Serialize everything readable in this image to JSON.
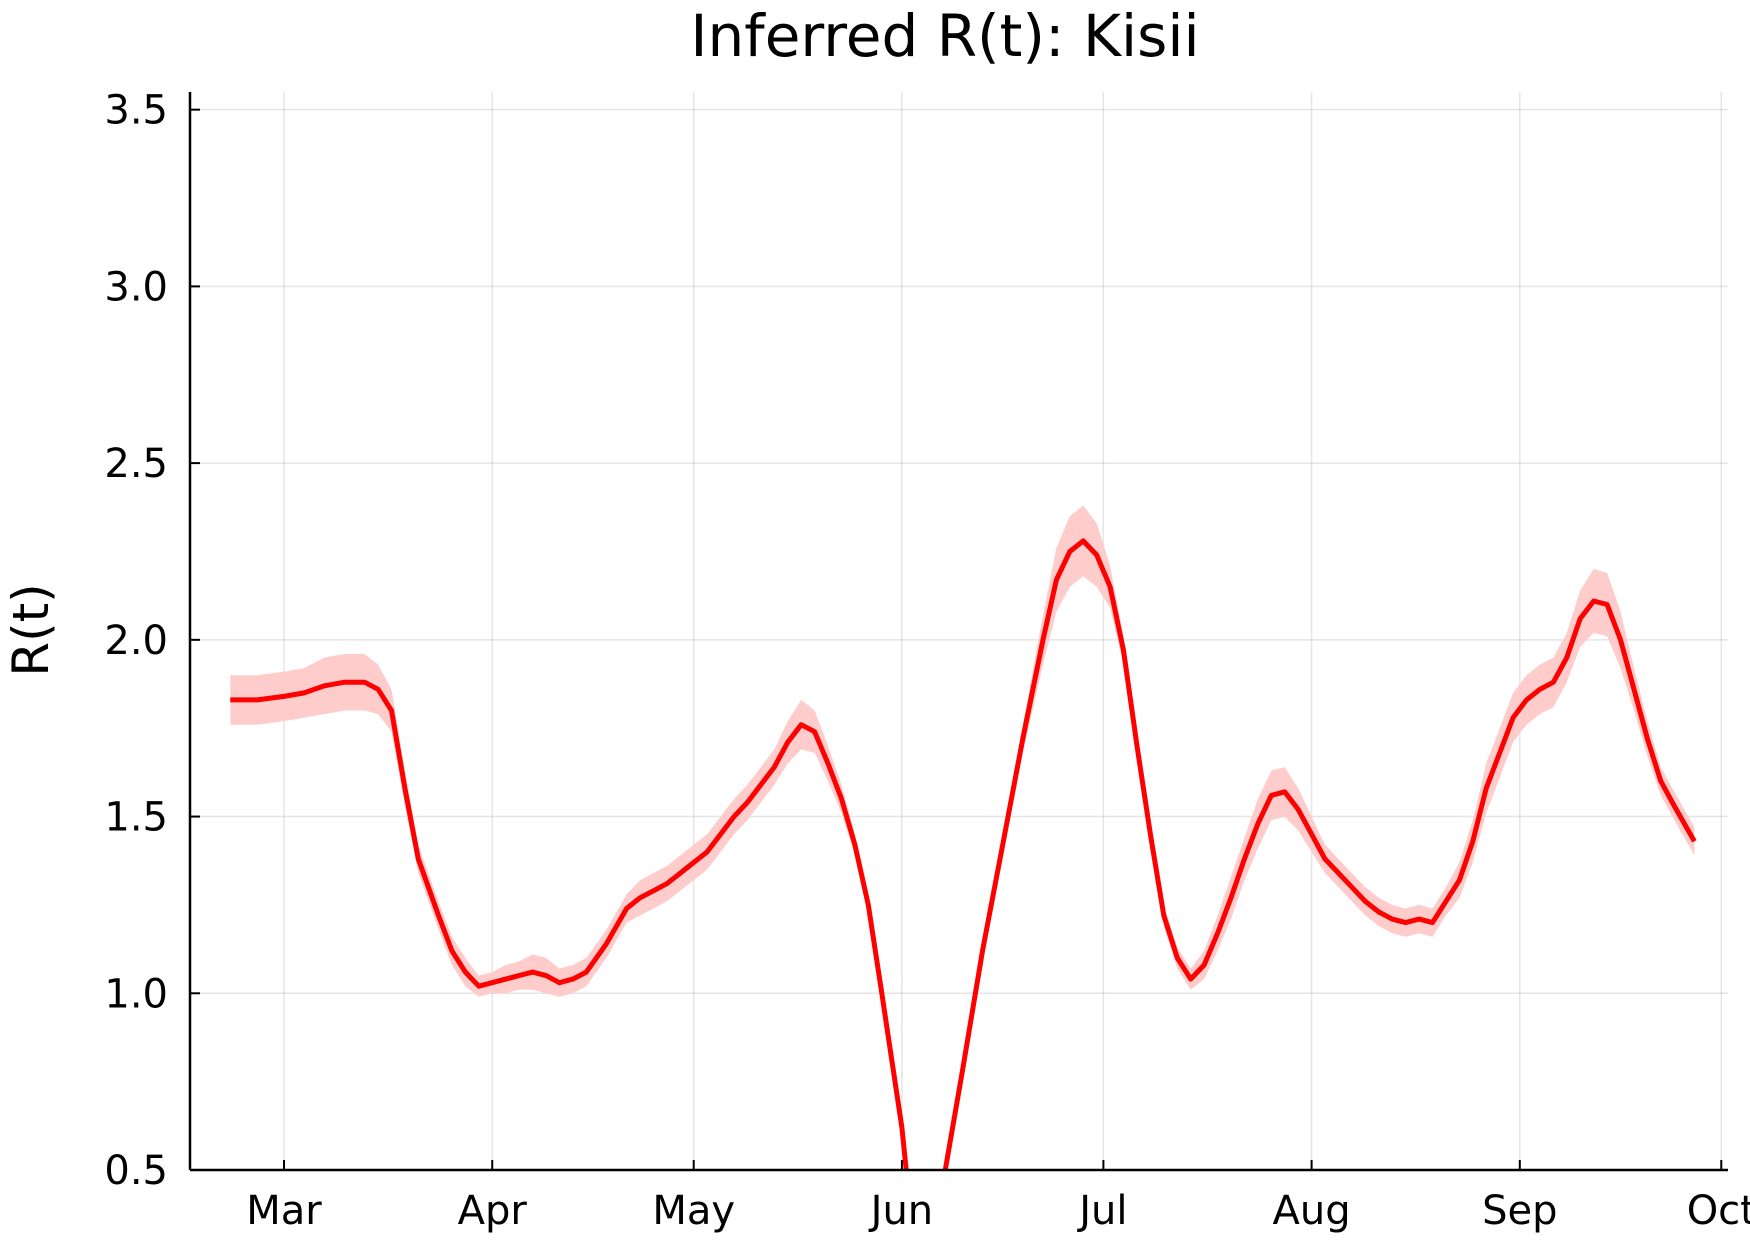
{
  "chart_data": {
    "type": "line",
    "title": "Inferred R(t): Kisii",
    "xlabel": "",
    "ylabel": "R(t)",
    "ylim": [
      0.5,
      3.55
    ],
    "xlim": [
      "2020-02-16",
      "2020-10-02"
    ],
    "grid": true,
    "legend": "none",
    "colors": {
      "line": "#ff0000",
      "band": "#ffcccc"
    },
    "y_ticks": [
      {
        "value": 0.5,
        "label": "0.5"
      },
      {
        "value": 1.0,
        "label": "1.0"
      },
      {
        "value": 1.5,
        "label": "1.5"
      },
      {
        "value": 2.0,
        "label": "2.0"
      },
      {
        "value": 2.5,
        "label": "2.5"
      },
      {
        "value": 3.0,
        "label": "3.0"
      },
      {
        "value": 3.5,
        "label": "3.5"
      }
    ],
    "x_ticks": [
      {
        "value": "2020-03-01",
        "label": "Mar"
      },
      {
        "value": "2020-04-01",
        "label": "Apr"
      },
      {
        "value": "2020-05-01",
        "label": "May"
      },
      {
        "value": "2020-06-01",
        "label": "Jun"
      },
      {
        "value": "2020-07-01",
        "label": "Jul"
      },
      {
        "value": "2020-08-01",
        "label": "Aug"
      },
      {
        "value": "2020-09-01",
        "label": "Sep"
      },
      {
        "value": "2020-10-01",
        "label": "Oct"
      }
    ],
    "series": [
      {
        "x": [
          "2020-02-22",
          "2020-02-24",
          "2020-02-26",
          "2020-03-01",
          "2020-03-04",
          "2020-03-07",
          "2020-03-10",
          "2020-03-13",
          "2020-03-15",
          "2020-03-17",
          "2020-03-19",
          "2020-03-21",
          "2020-03-24",
          "2020-03-26",
          "2020-03-28",
          "2020-03-30",
          "2020-04-01",
          "2020-04-03",
          "2020-04-05",
          "2020-04-07",
          "2020-04-09",
          "2020-04-11",
          "2020-04-13",
          "2020-04-15",
          "2020-04-18",
          "2020-04-21",
          "2020-04-23",
          "2020-04-25",
          "2020-04-27",
          "2020-04-29",
          "2020-05-01",
          "2020-05-03",
          "2020-05-05",
          "2020-05-07",
          "2020-05-09",
          "2020-05-11",
          "2020-05-13",
          "2020-05-15",
          "2020-05-17",
          "2020-05-19",
          "2020-05-21",
          "2020-05-23",
          "2020-05-25",
          "2020-05-27",
          "2020-05-29",
          "2020-06-01",
          "2020-06-03",
          "2020-06-05",
          "2020-06-07",
          "2020-06-10",
          "2020-06-13",
          "2020-06-16",
          "2020-06-19",
          "2020-06-22",
          "2020-06-24",
          "2020-06-26",
          "2020-06-28",
          "2020-06-30",
          "2020-07-02",
          "2020-07-04",
          "2020-07-06",
          "2020-07-08",
          "2020-07-10",
          "2020-07-12",
          "2020-07-14",
          "2020-07-16",
          "2020-07-18",
          "2020-07-20",
          "2020-07-22",
          "2020-07-24",
          "2020-07-26",
          "2020-07-28",
          "2020-07-30",
          "2020-08-01",
          "2020-08-03",
          "2020-08-05",
          "2020-08-07",
          "2020-08-09",
          "2020-08-11",
          "2020-08-13",
          "2020-08-15",
          "2020-08-17",
          "2020-08-19",
          "2020-08-21",
          "2020-08-23",
          "2020-08-25",
          "2020-08-27",
          "2020-08-29",
          "2020-08-31",
          "2020-09-02",
          "2020-09-04",
          "2020-09-06",
          "2020-09-08",
          "2020-09-10",
          "2020-09-12",
          "2020-09-14",
          "2020-09-16",
          "2020-09-18",
          "2020-09-20",
          "2020-09-22",
          "2020-09-24",
          "2020-09-27"
        ],
        "values": [
          1.83,
          1.83,
          1.83,
          1.84,
          1.85,
          1.87,
          1.88,
          1.88,
          1.86,
          1.8,
          1.58,
          1.38,
          1.22,
          1.12,
          1.06,
          1.02,
          1.03,
          1.04,
          1.05,
          1.06,
          1.05,
          1.03,
          1.04,
          1.06,
          1.14,
          1.24,
          1.27,
          1.29,
          1.31,
          1.34,
          1.37,
          1.4,
          1.45,
          1.5,
          1.54,
          1.59,
          1.64,
          1.71,
          1.76,
          1.74,
          1.65,
          1.55,
          1.42,
          1.25,
          1.0,
          0.62,
          0.25,
          0.22,
          0.45,
          0.78,
          1.12,
          1.42,
          1.72,
          2.0,
          2.17,
          2.25,
          2.28,
          2.24,
          2.15,
          1.97,
          1.7,
          1.45,
          1.22,
          1.1,
          1.04,
          1.08,
          1.17,
          1.27,
          1.38,
          1.48,
          1.56,
          1.57,
          1.52,
          1.45,
          1.38,
          1.34,
          1.3,
          1.26,
          1.23,
          1.21,
          1.2,
          1.21,
          1.2,
          1.26,
          1.32,
          1.43,
          1.58,
          1.68,
          1.78,
          1.83,
          1.86,
          1.88,
          1.95,
          2.06,
          2.11,
          2.1,
          2.0,
          1.86,
          1.72,
          1.6,
          1.53,
          1.43
        ],
        "band_halfwidth": [
          0.07,
          0.07,
          0.07,
          0.07,
          0.07,
          0.08,
          0.08,
          0.08,
          0.07,
          0.06,
          0.05,
          0.04,
          0.04,
          0.04,
          0.04,
          0.03,
          0.03,
          0.04,
          0.04,
          0.05,
          0.05,
          0.04,
          0.04,
          0.04,
          0.04,
          0.04,
          0.05,
          0.05,
          0.05,
          0.05,
          0.05,
          0.05,
          0.05,
          0.05,
          0.05,
          0.05,
          0.05,
          0.06,
          0.07,
          0.06,
          0.05,
          0.04,
          0.03,
          0.03,
          0.03,
          0.03,
          0.03,
          0.03,
          0.03,
          0.03,
          0.03,
          0.03,
          0.04,
          0.07,
          0.09,
          0.1,
          0.1,
          0.09,
          0.06,
          0.04,
          0.03,
          0.03,
          0.03,
          0.03,
          0.03,
          0.04,
          0.05,
          0.06,
          0.06,
          0.07,
          0.07,
          0.07,
          0.06,
          0.05,
          0.04,
          0.04,
          0.04,
          0.04,
          0.04,
          0.04,
          0.04,
          0.04,
          0.04,
          0.04,
          0.05,
          0.06,
          0.07,
          0.07,
          0.07,
          0.07,
          0.07,
          0.07,
          0.07,
          0.08,
          0.09,
          0.09,
          0.08,
          0.06,
          0.05,
          0.04,
          0.04,
          0.04
        ]
      }
    ]
  }
}
